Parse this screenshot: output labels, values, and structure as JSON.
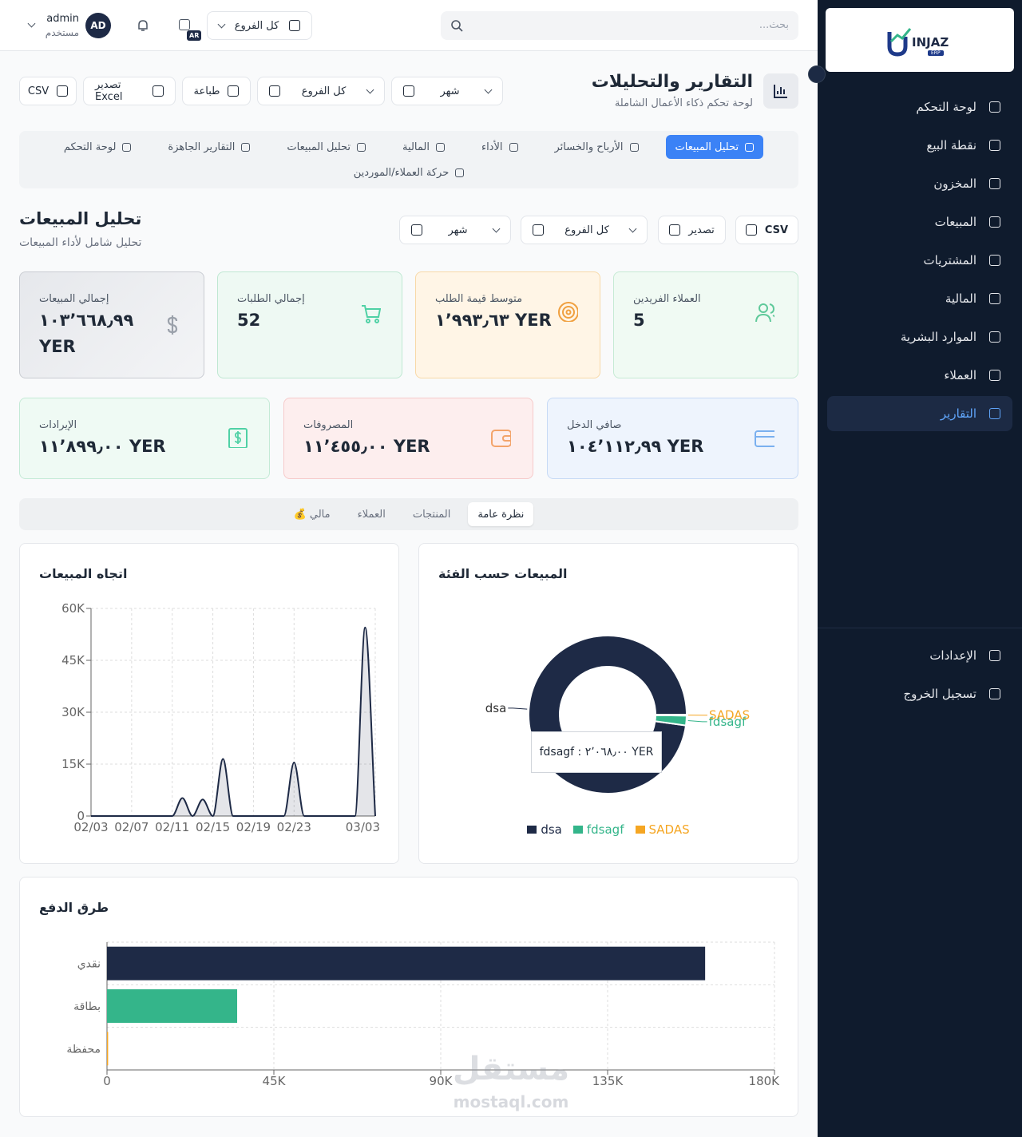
{
  "sidebar": {
    "logo": "INJAZ",
    "logo_sub": "ERP",
    "nav": [
      "لوحة التحكم",
      "نقطة البيع",
      "المخزون",
      "المبيعات",
      "المشتريات",
      "المالية",
      "الموارد البشرية",
      "العملاء",
      "التقارير"
    ],
    "active": 8,
    "bottom": [
      "الإعدادات",
      "تسجيل الخروج"
    ]
  },
  "topbar": {
    "search": "بحث...",
    "branch": "كل الفروع",
    "lang": "AR",
    "user": "admin",
    "role": "مستخدم",
    "avatar": "AD"
  },
  "header": {
    "title": "التقارير والتحليلات",
    "subtitle": "لوحة تحكم ذكاء الأعمال الشاملة",
    "period": "شهر",
    "branch": "كل الفروع",
    "print": "طباعة",
    "excel": "تصدير Excel",
    "csv": "CSV"
  },
  "tabs": {
    "items": [
      "تحليل المبيعات",
      "الأرباح والخسائر",
      "الأداء",
      "المالية",
      "تحليل المبيعات",
      "التقارير الجاهزة",
      "لوحة التحكم",
      "حركة العملاء/الموردين"
    ],
    "active": 0
  },
  "section": {
    "title": "تحليل المبيعات",
    "subtitle": "تحليل شامل لأداء المبيعات",
    "csv": "CSV",
    "export": "تصدير",
    "branch": "كل الفروع",
    "period": "شهر"
  },
  "kpis": [
    {
      "label": "إجمالي المبيعات",
      "value": "١٠٣٬٦٦٨٫٩٩ YER"
    },
    {
      "label": "إجمالي الطلبات",
      "value": "52"
    },
    {
      "label": "متوسط قيمة الطلب",
      "value": "١٬٩٩٣٫٦٣ YER"
    },
    {
      "label": "العملاء الفريدين",
      "value": "5"
    },
    {
      "label": "الإيرادات",
      "value": "١١٬٨٩٩٫٠٠ YER"
    },
    {
      "label": "المصروفات",
      "value": "١١٬٤٥٥٫٠٠ YER"
    },
    {
      "label": "صافي الدخل",
      "value": "١٠٤٬١١٢٫٩٩ YER"
    }
  ],
  "subtabs": {
    "items": [
      "نظرة عامة",
      "المنتجات",
      "العملاء",
      "مالي 💰"
    ],
    "active": 0
  },
  "watermark": {
    "text": "مستقل",
    "url": "mostaql.com"
  },
  "chart_data": [
    {
      "type": "line",
      "title": "اتجاه المبيعات",
      "categories": [
        "02/03",
        null,
        null,
        null,
        "02/07",
        null,
        null,
        null,
        "02/11",
        null,
        null,
        null,
        "02/15",
        null,
        null,
        null,
        "02/19",
        null,
        null,
        null,
        "02/23",
        null,
        null,
        null,
        null,
        null,
        null,
        null,
        "03/03"
      ],
      "values": [
        0,
        0,
        0,
        0,
        0,
        0,
        0,
        0,
        0,
        5200,
        0,
        4800,
        0,
        16500,
        0,
        0,
        0,
        0,
        0,
        0,
        15500,
        0,
        0,
        0,
        0,
        0,
        0,
        54500,
        0
      ],
      "color": "#1e2a46",
      "ylim": [
        0,
        60000
      ],
      "yticks": [
        0,
        {
          "value": 15000,
          "label": "15K"
        },
        {
          "value": 30000,
          "label": "30K"
        },
        {
          "value": 45000,
          "label": "45K"
        },
        {
          "value": 60000,
          "label": "60K"
        }
      ],
      "grid": true
    },
    {
      "type": "pie",
      "title": "المبيعات حسب الفئة",
      "categories": [
        "dsa",
        "fdsagf",
        "SADAS"
      ],
      "values": [
        101400.99,
        2068,
        200
      ],
      "colors": [
        "#1e2a46",
        "#34b58a",
        "#f5a623"
      ],
      "tooltip": "fdsagf : ٢٬٠٦٨٫٠٠ YER",
      "legend": "bottom"
    },
    {
      "type": "barh",
      "title": "طرق الدفع",
      "categories": [
        "نقدي",
        "بطاقة",
        "محفظة"
      ],
      "values": [
        161300,
        35100,
        300
      ],
      "colors": [
        "#1e2a46",
        "#34b58a",
        "#f5a623"
      ],
      "xlim": [
        0,
        180000
      ],
      "xticks": [
        0,
        {
          "value": 45000,
          "label": "45K"
        },
        {
          "value": 90000,
          "label": "90K"
        },
        {
          "value": 135000,
          "label": "135K"
        },
        {
          "value": 180000,
          "label": "180K"
        }
      ],
      "grid": true
    }
  ]
}
